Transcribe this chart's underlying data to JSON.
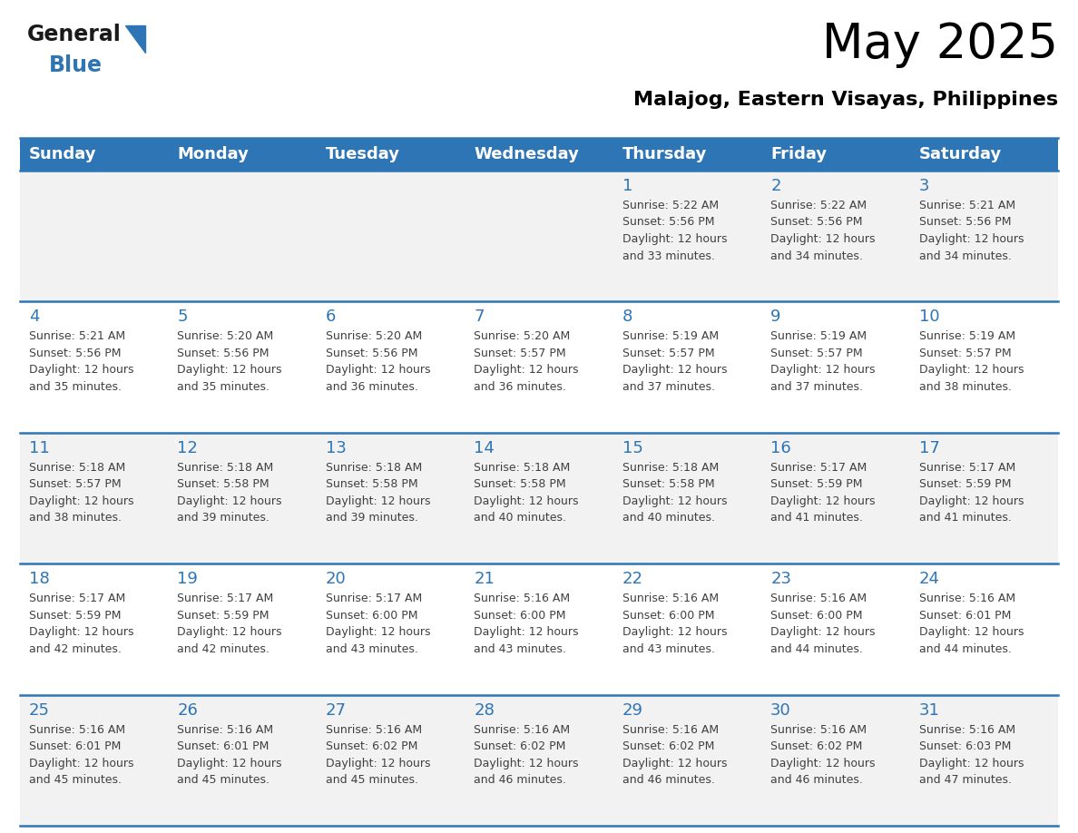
{
  "title": "May 2025",
  "subtitle": "Malajog, Eastern Visayas, Philippines",
  "header_bg": "#2E75B6",
  "header_text": "#FFFFFF",
  "header_days": [
    "Sunday",
    "Monday",
    "Tuesday",
    "Wednesday",
    "Thursday",
    "Friday",
    "Saturday"
  ],
  "row_bg_even": "#F2F2F2",
  "row_bg_odd": "#FFFFFF",
  "cell_border": "#2E75B6",
  "day_number_color": "#2E75B6",
  "text_color": "#404040",
  "logo_general_color": "#1a1a1a",
  "logo_blue_color": "#2E75B6",
  "calendar_data": [
    [
      {
        "day": null,
        "sunrise": null,
        "sunset": null,
        "daylight": null
      },
      {
        "day": null,
        "sunrise": null,
        "sunset": null,
        "daylight": null
      },
      {
        "day": null,
        "sunrise": null,
        "sunset": null,
        "daylight": null
      },
      {
        "day": null,
        "sunrise": null,
        "sunset": null,
        "daylight": null
      },
      {
        "day": 1,
        "sunrise": "5:22 AM",
        "sunset": "5:56 PM",
        "daylight": "12 hours and 33 minutes."
      },
      {
        "day": 2,
        "sunrise": "5:22 AM",
        "sunset": "5:56 PM",
        "daylight": "12 hours and 34 minutes."
      },
      {
        "day": 3,
        "sunrise": "5:21 AM",
        "sunset": "5:56 PM",
        "daylight": "12 hours and 34 minutes."
      }
    ],
    [
      {
        "day": 4,
        "sunrise": "5:21 AM",
        "sunset": "5:56 PM",
        "daylight": "12 hours and 35 minutes."
      },
      {
        "day": 5,
        "sunrise": "5:20 AM",
        "sunset": "5:56 PM",
        "daylight": "12 hours and 35 minutes."
      },
      {
        "day": 6,
        "sunrise": "5:20 AM",
        "sunset": "5:56 PM",
        "daylight": "12 hours and 36 minutes."
      },
      {
        "day": 7,
        "sunrise": "5:20 AM",
        "sunset": "5:57 PM",
        "daylight": "12 hours and 36 minutes."
      },
      {
        "day": 8,
        "sunrise": "5:19 AM",
        "sunset": "5:57 PM",
        "daylight": "12 hours and 37 minutes."
      },
      {
        "day": 9,
        "sunrise": "5:19 AM",
        "sunset": "5:57 PM",
        "daylight": "12 hours and 37 minutes."
      },
      {
        "day": 10,
        "sunrise": "5:19 AM",
        "sunset": "5:57 PM",
        "daylight": "12 hours and 38 minutes."
      }
    ],
    [
      {
        "day": 11,
        "sunrise": "5:18 AM",
        "sunset": "5:57 PM",
        "daylight": "12 hours and 38 minutes."
      },
      {
        "day": 12,
        "sunrise": "5:18 AM",
        "sunset": "5:58 PM",
        "daylight": "12 hours and 39 minutes."
      },
      {
        "day": 13,
        "sunrise": "5:18 AM",
        "sunset": "5:58 PM",
        "daylight": "12 hours and 39 minutes."
      },
      {
        "day": 14,
        "sunrise": "5:18 AM",
        "sunset": "5:58 PM",
        "daylight": "12 hours and 40 minutes."
      },
      {
        "day": 15,
        "sunrise": "5:18 AM",
        "sunset": "5:58 PM",
        "daylight": "12 hours and 40 minutes."
      },
      {
        "day": 16,
        "sunrise": "5:17 AM",
        "sunset": "5:59 PM",
        "daylight": "12 hours and 41 minutes."
      },
      {
        "day": 17,
        "sunrise": "5:17 AM",
        "sunset": "5:59 PM",
        "daylight": "12 hours and 41 minutes."
      }
    ],
    [
      {
        "day": 18,
        "sunrise": "5:17 AM",
        "sunset": "5:59 PM",
        "daylight": "12 hours and 42 minutes."
      },
      {
        "day": 19,
        "sunrise": "5:17 AM",
        "sunset": "5:59 PM",
        "daylight": "12 hours and 42 minutes."
      },
      {
        "day": 20,
        "sunrise": "5:17 AM",
        "sunset": "6:00 PM",
        "daylight": "12 hours and 43 minutes."
      },
      {
        "day": 21,
        "sunrise": "5:16 AM",
        "sunset": "6:00 PM",
        "daylight": "12 hours and 43 minutes."
      },
      {
        "day": 22,
        "sunrise": "5:16 AM",
        "sunset": "6:00 PM",
        "daylight": "12 hours and 43 minutes."
      },
      {
        "day": 23,
        "sunrise": "5:16 AM",
        "sunset": "6:00 PM",
        "daylight": "12 hours and 44 minutes."
      },
      {
        "day": 24,
        "sunrise": "5:16 AM",
        "sunset": "6:01 PM",
        "daylight": "12 hours and 44 minutes."
      }
    ],
    [
      {
        "day": 25,
        "sunrise": "5:16 AM",
        "sunset": "6:01 PM",
        "daylight": "12 hours and 45 minutes."
      },
      {
        "day": 26,
        "sunrise": "5:16 AM",
        "sunset": "6:01 PM",
        "daylight": "12 hours and 45 minutes."
      },
      {
        "day": 27,
        "sunrise": "5:16 AM",
        "sunset": "6:02 PM",
        "daylight": "12 hours and 45 minutes."
      },
      {
        "day": 28,
        "sunrise": "5:16 AM",
        "sunset": "6:02 PM",
        "daylight": "12 hours and 46 minutes."
      },
      {
        "day": 29,
        "sunrise": "5:16 AM",
        "sunset": "6:02 PM",
        "daylight": "12 hours and 46 minutes."
      },
      {
        "day": 30,
        "sunrise": "5:16 AM",
        "sunset": "6:02 PM",
        "daylight": "12 hours and 46 minutes."
      },
      {
        "day": 31,
        "sunrise": "5:16 AM",
        "sunset": "6:03 PM",
        "daylight": "12 hours and 47 minutes."
      }
    ]
  ]
}
